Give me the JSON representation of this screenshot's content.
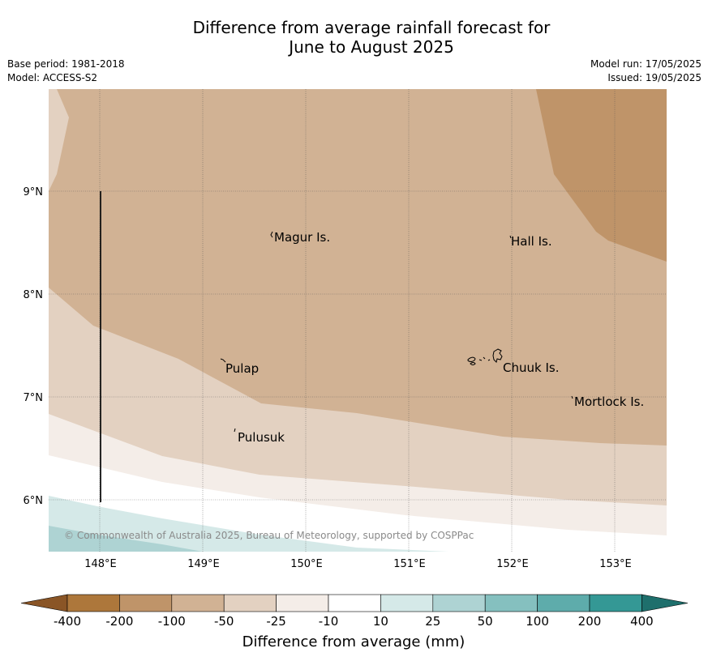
{
  "title_line1": "Difference from average rainfall forecast for",
  "title_line2": "June to August 2025",
  "base_period": "Base period: 1981-2018",
  "model": "Model: ACCESS-S2",
  "model_run": "Model run: 17/05/2025",
  "issued": "Issued: 19/05/2025",
  "copyright": "© Commonwealth of Australia 2025, Bureau of Meteorology, supported by COSPPac",
  "lat_ticks": [
    "9°N",
    "8°N",
    "7°N",
    "6°N"
  ],
  "lon_ticks": [
    "148°E",
    "149°E",
    "150°E",
    "151°E",
    "152°E",
    "153°E"
  ],
  "places": [
    {
      "name": "Magur Is."
    },
    {
      "name": "Hall Is."
    },
    {
      "name": "Pulap"
    },
    {
      "name": "Chuuk Is."
    },
    {
      "name": "Mortlock Is."
    },
    {
      "name": "Pulusuk"
    }
  ],
  "colorbar": {
    "title": "Difference from average (mm)",
    "labels": [
      "-400",
      "-200",
      "-100",
      "-50",
      "-25",
      "-10",
      "10",
      "25",
      "50",
      "100",
      "200",
      "400"
    ],
    "colors": [
      "#ad773b",
      "#bf9469",
      "#d1b294",
      "#e3d1c1",
      "#f4ede8",
      "#ffffff",
      "#d5e9e8",
      "#aed3d3",
      "#85c0bf",
      "#5eacab",
      "#349895"
    ],
    "extend_low_color": "#8a5526",
    "extend_high_color": "#1e6f6c"
  }
}
